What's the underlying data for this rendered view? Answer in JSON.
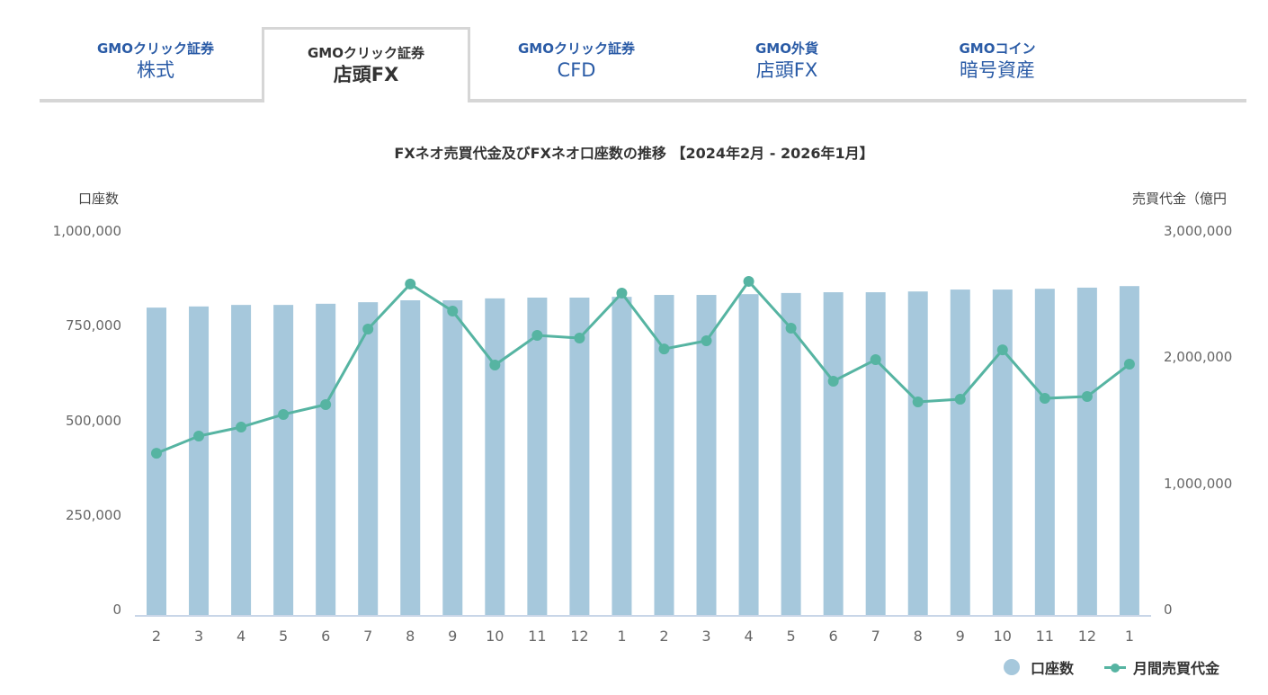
{
  "tabs": [
    {
      "sub": "GMOクリック証券",
      "main": "株式",
      "active": false
    },
    {
      "sub": "GMOクリック証券",
      "main": "店頭FX",
      "active": true
    },
    {
      "sub": "GMOクリック証券",
      "main": "CFD",
      "active": false
    },
    {
      "sub": "GMO外貨",
      "main": "店頭FX",
      "active": false
    },
    {
      "sub": "GMOコイン",
      "main": "暗号資産",
      "active": false
    }
  ],
  "colors": {
    "bar": "#a6c8dc",
    "line": "#56b4a2",
    "tab_link": "#2a5ba6",
    "axis": "#c9d6e8"
  },
  "chart_data": {
    "type": "bar+line",
    "title": "FXネオ売買代金及びFXネオ口座数の推移 【2024年2月 - 2026年1月】",
    "left_axis_label": "口座数",
    "right_axis_label": "売買代金（億円",
    "left_ticks": [
      "1,000,000",
      "750,000",
      "500,000",
      "250,000",
      "0"
    ],
    "right_ticks": [
      "3,000,000",
      "2,000,000",
      "1,000,000",
      "0"
    ],
    "ylim_left": [
      0,
      1000000
    ],
    "ylim_right": [
      0,
      3000000
    ],
    "categories": [
      "2",
      "3",
      "4",
      "5",
      "6",
      "7",
      "8",
      "9",
      "10",
      "11",
      "12",
      "1",
      "2",
      "3",
      "4",
      "5",
      "6",
      "7",
      "8",
      "9",
      "10",
      "11",
      "12",
      "1"
    ],
    "series": [
      {
        "name": "口座数",
        "type": "bar",
        "axis": "left",
        "values": [
          803000,
          806000,
          810000,
          810000,
          813000,
          817000,
          822000,
          822000,
          827000,
          829000,
          829000,
          831000,
          836000,
          836000,
          838000,
          841000,
          843000,
          843000,
          845000,
          850000,
          850000,
          852000,
          855000,
          859000
        ]
      },
      {
        "name": "月間売買代金",
        "type": "line",
        "axis": "left_right",
        "axis_used": "right",
        "values": [
          1271000,
          1405000,
          1475000,
          1574000,
          1651000,
          2241000,
          2593000,
          2382000,
          1960000,
          2192000,
          2171000,
          2522000,
          2086000,
          2150000,
          2614000,
          2248000,
          1834000,
          2002000,
          1672000,
          1693000,
          2079000,
          1700000,
          1714000,
          1967000
        ]
      }
    ],
    "legend": [
      "口座数",
      "月間売買代金"
    ],
    "legend_position": "bottom-right"
  }
}
